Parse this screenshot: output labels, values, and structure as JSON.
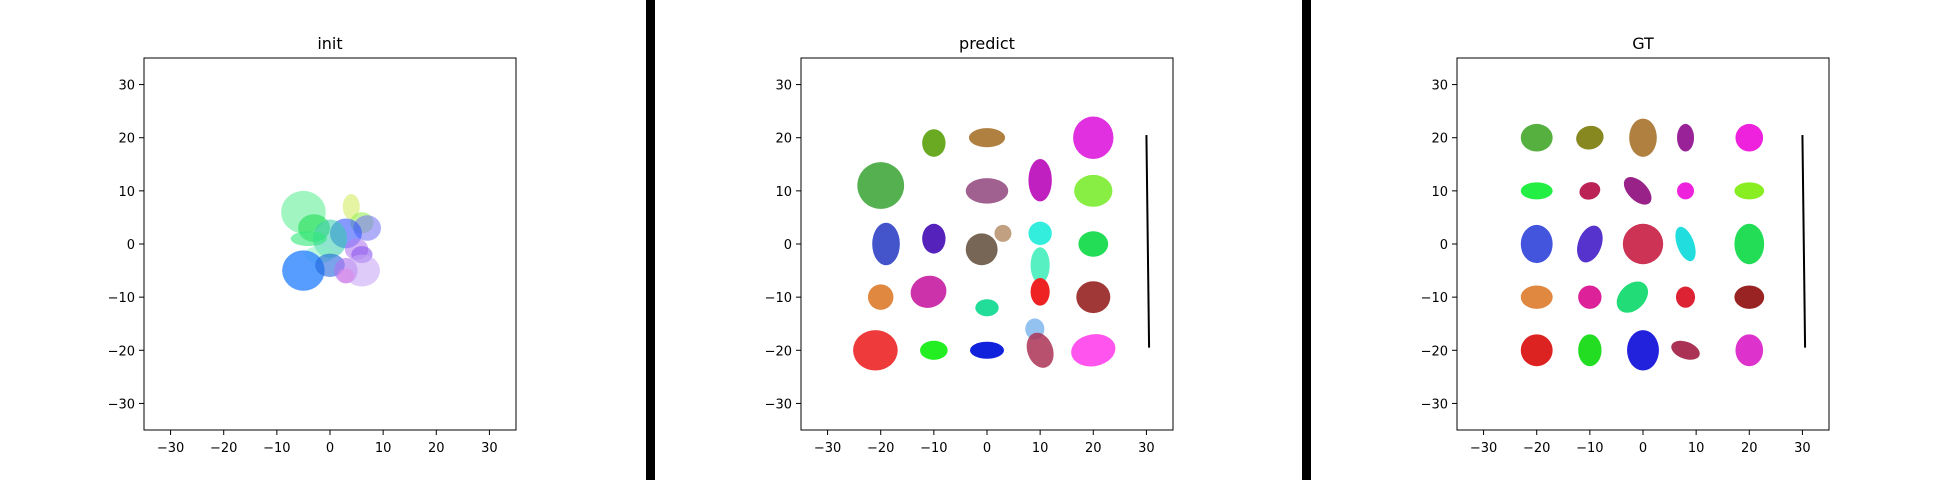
{
  "chart_data": [
    {
      "type": "scatter",
      "title": "init",
      "xlim": [
        -35,
        35
      ],
      "ylim": [
        -35,
        35
      ],
      "xticks": [
        -30,
        -20,
        -10,
        0,
        10,
        20,
        30
      ],
      "yticks": [
        -30,
        -20,
        -10,
        0,
        10,
        20,
        30
      ],
      "grid": false,
      "ellipses": [
        {
          "x": -5,
          "y": 6,
          "rx": 4.2,
          "ry": 4.0,
          "angle": 0,
          "color": "#6ef0a0",
          "opacity": 0.65
        },
        {
          "x": -3,
          "y": 3,
          "rx": 3.0,
          "ry": 2.6,
          "angle": 0,
          "color": "#22dd55",
          "opacity": 0.6
        },
        {
          "x": 4,
          "y": 7,
          "rx": 1.6,
          "ry": 2.4,
          "angle": 0,
          "color": "#d9f07a",
          "opacity": 0.7
        },
        {
          "x": 6,
          "y": 4,
          "rx": 2.2,
          "ry": 2.0,
          "angle": 0,
          "color": "#9aee55",
          "opacity": 0.6
        },
        {
          "x": 7,
          "y": 3,
          "rx": 2.6,
          "ry": 2.4,
          "angle": 0,
          "color": "#7a78f5",
          "opacity": 0.6
        },
        {
          "x": 3,
          "y": 2,
          "rx": 3.0,
          "ry": 2.8,
          "angle": 0,
          "color": "#3355ff",
          "opacity": 0.6
        },
        {
          "x": 0,
          "y": 1,
          "rx": 3.2,
          "ry": 3.6,
          "angle": 0,
          "color": "#33ccaa",
          "opacity": 0.55
        },
        {
          "x": -4,
          "y": 1,
          "rx": 3.4,
          "ry": 1.4,
          "angle": 0,
          "color": "#2fe878",
          "opacity": 0.6
        },
        {
          "x": -2,
          "y": -2,
          "rx": 2.8,
          "ry": 1.6,
          "angle": 0,
          "color": "#88f0c0",
          "opacity": 0.55
        },
        {
          "x": 5,
          "y": -1,
          "rx": 2.2,
          "ry": 2.0,
          "angle": 0,
          "color": "#b67cf0",
          "opacity": 0.6
        },
        {
          "x": 6,
          "y": -2,
          "rx": 2.0,
          "ry": 1.6,
          "angle": 0,
          "color": "#8a55ee",
          "opacity": 0.6
        },
        {
          "x": -5,
          "y": -5,
          "rx": 4.0,
          "ry": 3.8,
          "angle": 0,
          "color": "#3a8cff",
          "opacity": 0.85
        },
        {
          "x": 0,
          "y": -4,
          "rx": 2.8,
          "ry": 2.2,
          "angle": 0,
          "color": "#2266dd",
          "opacity": 0.6
        },
        {
          "x": 3,
          "y": -5,
          "rx": 2.2,
          "ry": 2.4,
          "angle": 0,
          "color": "#b070f0",
          "opacity": 0.6
        },
        {
          "x": 6,
          "y": -5,
          "rx": 3.4,
          "ry": 3.0,
          "angle": 0,
          "color": "#c8a8f5",
          "opacity": 0.6
        },
        {
          "x": 3,
          "y": -6,
          "rx": 1.6,
          "ry": 1.4,
          "angle": 0,
          "color": "#e08ae8",
          "opacity": 0.6
        }
      ],
      "lines": []
    },
    {
      "type": "scatter",
      "title": "predict",
      "xlim": [
        -35,
        35
      ],
      "ylim": [
        -35,
        35
      ],
      "xticks": [
        -30,
        -20,
        -10,
        0,
        10,
        20,
        30
      ],
      "yticks": [
        -30,
        -20,
        -10,
        0,
        10,
        20,
        30
      ],
      "grid": false,
      "ellipses": [
        {
          "x": -10,
          "y": 19,
          "rx": 2.2,
          "ry": 2.6,
          "angle": 0,
          "color": "#6aaa22",
          "opacity": 1
        },
        {
          "x": 0,
          "y": 20,
          "rx": 3.4,
          "ry": 1.8,
          "angle": 0,
          "color": "#b08040",
          "opacity": 1
        },
        {
          "x": 20,
          "y": 20,
          "rx": 3.8,
          "ry": 4.0,
          "angle": 0,
          "color": "#e030e0",
          "opacity": 1
        },
        {
          "x": -20,
          "y": 11,
          "rx": 4.4,
          "ry": 4.4,
          "angle": 0,
          "color": "#55b050",
          "opacity": 1
        },
        {
          "x": 0,
          "y": 10,
          "rx": 4.0,
          "ry": 2.4,
          "angle": 0,
          "color": "#a06090",
          "opacity": 1
        },
        {
          "x": 10,
          "y": 12,
          "rx": 2.2,
          "ry": 4.0,
          "angle": 0,
          "color": "#c020c0",
          "opacity": 1
        },
        {
          "x": 20,
          "y": 10,
          "rx": 3.6,
          "ry": 3.0,
          "angle": 0,
          "color": "#88ee44",
          "opacity": 1
        },
        {
          "x": -19,
          "y": 0,
          "rx": 2.6,
          "ry": 4.0,
          "angle": 0,
          "color": "#4455cc",
          "opacity": 1
        },
        {
          "x": -10,
          "y": 1,
          "rx": 2.2,
          "ry": 2.8,
          "angle": 0,
          "color": "#5522bb",
          "opacity": 1
        },
        {
          "x": -1,
          "y": -1,
          "rx": 3.0,
          "ry": 3.0,
          "angle": 0,
          "color": "#776655",
          "opacity": 1
        },
        {
          "x": 3,
          "y": 2,
          "rx": 1.6,
          "ry": 1.6,
          "angle": 0,
          "color": "#c0a080",
          "opacity": 1
        },
        {
          "x": 10,
          "y": 2,
          "rx": 2.2,
          "ry": 2.2,
          "angle": 0,
          "color": "#33eedd",
          "opacity": 1
        },
        {
          "x": 20,
          "y": 0,
          "rx": 2.8,
          "ry": 2.4,
          "angle": 0,
          "color": "#22dd55",
          "opacity": 1
        },
        {
          "x": 10,
          "y": -4,
          "rx": 1.8,
          "ry": 3.4,
          "angle": 0,
          "color": "#44eebb",
          "opacity": 0.9
        },
        {
          "x": -20,
          "y": -10,
          "rx": 2.4,
          "ry": 2.4,
          "angle": 0,
          "color": "#e08840",
          "opacity": 1
        },
        {
          "x": -11,
          "y": -9,
          "rx": 3.4,
          "ry": 3.0,
          "angle": 15,
          "color": "#cc33aa",
          "opacity": 1
        },
        {
          "x": 0,
          "y": -12,
          "rx": 2.2,
          "ry": 1.6,
          "angle": 0,
          "color": "#22dd99",
          "opacity": 1
        },
        {
          "x": 10,
          "y": -9,
          "rx": 1.8,
          "ry": 2.6,
          "angle": 0,
          "color": "#ee2222",
          "opacity": 1
        },
        {
          "x": 20,
          "y": -10,
          "rx": 3.2,
          "ry": 3.0,
          "angle": 0,
          "color": "#a03838",
          "opacity": 1
        },
        {
          "x": -21,
          "y": -20,
          "rx": 4.2,
          "ry": 3.8,
          "angle": 0,
          "color": "#ee3a3a",
          "opacity": 1
        },
        {
          "x": -10,
          "y": -20,
          "rx": 2.6,
          "ry": 1.8,
          "angle": 0,
          "color": "#22ee22",
          "opacity": 1
        },
        {
          "x": 0,
          "y": -20,
          "rx": 3.2,
          "ry": 1.6,
          "angle": 0,
          "color": "#1122dd",
          "opacity": 1
        },
        {
          "x": 9,
          "y": -16,
          "rx": 1.8,
          "ry": 2.0,
          "angle": 0,
          "color": "#88bbee",
          "opacity": 0.9
        },
        {
          "x": 10,
          "y": -20,
          "rx": 2.4,
          "ry": 3.4,
          "angle": 20,
          "color": "#aa3355",
          "opacity": 0.85
        },
        {
          "x": 20,
          "y": -20,
          "rx": 4.2,
          "ry": 3.0,
          "angle": 10,
          "color": "#ff55ee",
          "opacity": 1
        }
      ],
      "lines": [
        {
          "x1": 30,
          "y1": 20.5,
          "x2": 30.5,
          "y2": -19.5,
          "color": "#000000"
        }
      ]
    },
    {
      "type": "scatter",
      "title": "GT",
      "xlim": [
        -35,
        35
      ],
      "ylim": [
        -35,
        35
      ],
      "xticks": [
        -30,
        -20,
        -10,
        0,
        10,
        20,
        30
      ],
      "yticks": [
        -30,
        -20,
        -10,
        0,
        10,
        20,
        30
      ],
      "grid": false,
      "ellipses": [
        {
          "x": -20,
          "y": 20,
          "rx": 3.0,
          "ry": 2.6,
          "angle": 0,
          "color": "#55b040",
          "opacity": 1
        },
        {
          "x": -10,
          "y": 20,
          "rx": 2.6,
          "ry": 2.2,
          "angle": 15,
          "color": "#888820",
          "opacity": 1
        },
        {
          "x": 0,
          "y": 20,
          "rx": 2.6,
          "ry": 3.6,
          "angle": 0,
          "color": "#b08040",
          "opacity": 1
        },
        {
          "x": 8,
          "y": 20,
          "rx": 1.6,
          "ry": 2.6,
          "angle": 0,
          "color": "#992299",
          "opacity": 1
        },
        {
          "x": 20,
          "y": 20,
          "rx": 2.6,
          "ry": 2.6,
          "angle": 0,
          "color": "#ee22dd",
          "opacity": 1
        },
        {
          "x": -20,
          "y": 10,
          "rx": 3.0,
          "ry": 1.6,
          "angle": 0,
          "color": "#22ee44",
          "opacity": 1
        },
        {
          "x": -10,
          "y": 10,
          "rx": 2.0,
          "ry": 1.6,
          "angle": 20,
          "color": "#bb2255",
          "opacity": 1
        },
        {
          "x": -1,
          "y": 10,
          "rx": 1.8,
          "ry": 3.2,
          "angle": 45,
          "color": "#992288",
          "opacity": 1
        },
        {
          "x": 8,
          "y": 10,
          "rx": 1.6,
          "ry": 1.6,
          "angle": 0,
          "color": "#ee22dd",
          "opacity": 1
        },
        {
          "x": 20,
          "y": 10,
          "rx": 2.8,
          "ry": 1.6,
          "angle": 0,
          "color": "#88ee22",
          "opacity": 1
        },
        {
          "x": -20,
          "y": 0,
          "rx": 3.0,
          "ry": 3.6,
          "angle": 0,
          "color": "#4455dd",
          "opacity": 1
        },
        {
          "x": -10,
          "y": 0,
          "rx": 2.2,
          "ry": 3.6,
          "angle": -20,
          "color": "#5533cc",
          "opacity": 1
        },
        {
          "x": 0,
          "y": 0,
          "rx": 3.8,
          "ry": 3.8,
          "angle": 0,
          "color": "#cc3355",
          "opacity": 1
        },
        {
          "x": 8,
          "y": 0,
          "rx": 1.6,
          "ry": 3.4,
          "angle": 20,
          "color": "#22dddd",
          "opacity": 1
        },
        {
          "x": 20,
          "y": 0,
          "rx": 2.8,
          "ry": 3.8,
          "angle": 0,
          "color": "#22dd55",
          "opacity": 1
        },
        {
          "x": -20,
          "y": -10,
          "rx": 3.0,
          "ry": 2.2,
          "angle": 0,
          "color": "#e08840",
          "opacity": 1
        },
        {
          "x": -10,
          "y": -10,
          "rx": 2.2,
          "ry": 2.2,
          "angle": 0,
          "color": "#dd2299",
          "opacity": 1
        },
        {
          "x": -2,
          "y": -10,
          "rx": 2.4,
          "ry": 3.4,
          "angle": -45,
          "color": "#22dd77",
          "opacity": 1
        },
        {
          "x": 8,
          "y": -10,
          "rx": 1.8,
          "ry": 2.0,
          "angle": 0,
          "color": "#dd2233",
          "opacity": 1
        },
        {
          "x": 20,
          "y": -10,
          "rx": 2.8,
          "ry": 2.2,
          "angle": 0,
          "color": "#992222",
          "opacity": 1
        },
        {
          "x": -20,
          "y": -20,
          "rx": 3.0,
          "ry": 3.0,
          "angle": 0,
          "color": "#dd2222",
          "opacity": 1
        },
        {
          "x": -10,
          "y": -20,
          "rx": 2.2,
          "ry": 3.0,
          "angle": 0,
          "color": "#22dd22",
          "opacity": 1
        },
        {
          "x": 0,
          "y": -20,
          "rx": 3.0,
          "ry": 3.8,
          "angle": 0,
          "color": "#2222dd",
          "opacity": 1
        },
        {
          "x": 8,
          "y": -20,
          "rx": 2.8,
          "ry": 1.6,
          "angle": -20,
          "color": "#aa3355",
          "opacity": 1
        },
        {
          "x": 20,
          "y": -20,
          "rx": 2.6,
          "ry": 3.0,
          "angle": 0,
          "color": "#dd33cc",
          "opacity": 1
        }
      ],
      "lines": [
        {
          "x1": 30,
          "y1": 20.5,
          "x2": 30.5,
          "y2": -19.5,
          "color": "#000000"
        }
      ]
    }
  ]
}
